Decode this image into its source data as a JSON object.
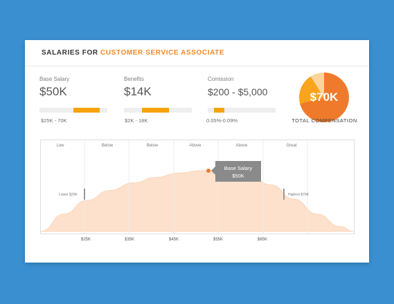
{
  "header": {
    "title_prefix": "SALARIES FOR ",
    "title_role": "CUSTOMER SERVICE ASSOCIATE"
  },
  "metrics": [
    {
      "label": "Base Salary",
      "value": "$50K",
      "range": "$25K - 70K",
      "bar_start": 0.5,
      "bar_end": 0.89
    },
    {
      "label": "Benefits",
      "value": "$14K",
      "range": "$2K - 18K",
      "bar_start": 0.27,
      "bar_end": 0.66
    },
    {
      "label": "Comission",
      "value": "$200 - $5,000",
      "range": "0.05%-0.09%",
      "bar_start": 0.09,
      "bar_end": 0.25
    }
  ],
  "total": {
    "value": "$70K",
    "label": "TOTAL COMPENSATION",
    "slices": [
      {
        "name": "base",
        "fraction": 0.71,
        "color": "#f07a2b"
      },
      {
        "name": "benefits",
        "fraction": 0.2,
        "color": "#f9a41c"
      },
      {
        "name": "commission",
        "fraction": 0.09,
        "color": "#fcd59a"
      }
    ]
  },
  "chart_data": {
    "type": "area",
    "columns": [
      "Low",
      "Below",
      "Below",
      "Above",
      "Above",
      "Great"
    ],
    "x_ticks": [
      "$25K",
      "$35K",
      "$45K",
      "$55K",
      "$65K"
    ],
    "x_tick_values": [
      25,
      35,
      45,
      55,
      65
    ],
    "xlim": [
      15,
      83
    ],
    "lower_marker": {
      "label": "Lower $25K",
      "x": 25
    },
    "highest_marker": {
      "label": "Highest $70K",
      "x": 70
    },
    "tooltip": {
      "line1": "Base Salary",
      "line2": "$50K",
      "x": 50
    },
    "curve": {
      "x": [
        15,
        20,
        25,
        30,
        35,
        40,
        45,
        50,
        55,
        60,
        65,
        70,
        75,
        80,
        83
      ],
      "y": [
        0,
        0.28,
        0.5,
        0.66,
        0.78,
        0.87,
        0.94,
        0.98,
        0.98,
        0.9,
        0.75,
        0.52,
        0.28,
        0.08,
        0
      ]
    },
    "fill_color": "#fde1cc",
    "grid": true
  }
}
